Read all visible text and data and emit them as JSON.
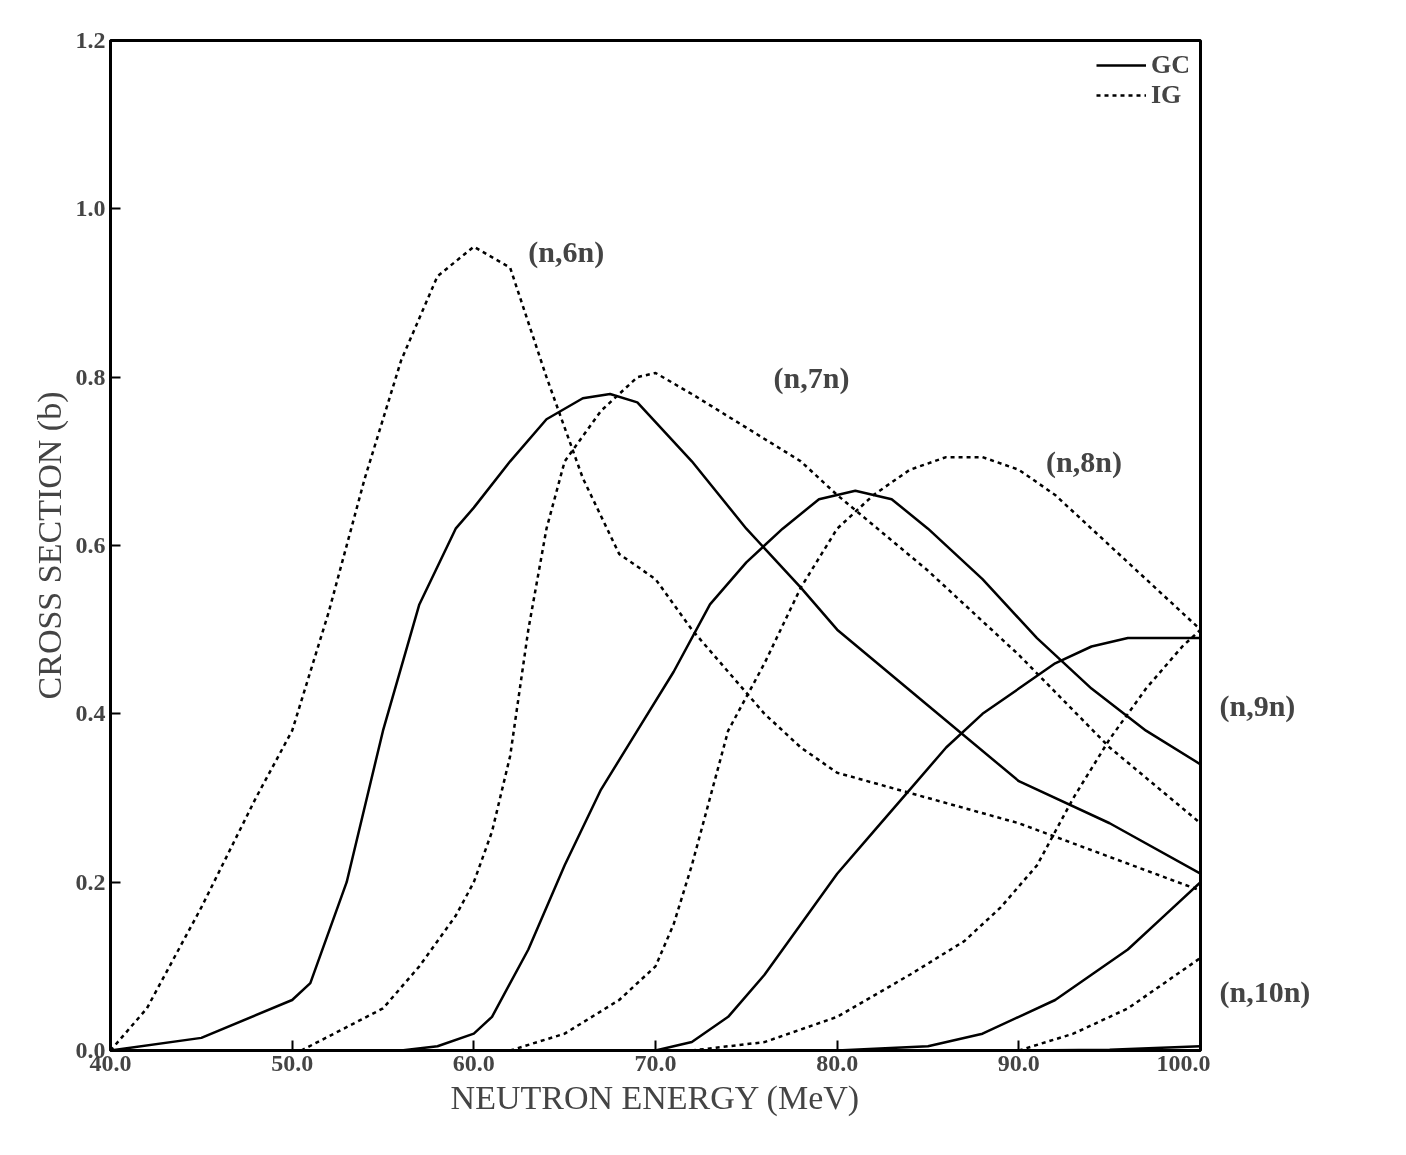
{
  "chart_data": {
    "type": "line",
    "xlabel": "NEUTRON ENERGY (MeV)",
    "ylabel": "CROSS SECTION (b)",
    "xlim": [
      40,
      100
    ],
    "ylim": [
      0,
      1.2
    ],
    "xticks": [
      {
        "value": 40,
        "label": "40.0"
      },
      {
        "value": 50,
        "label": "50.0"
      },
      {
        "value": 60,
        "label": "60.0"
      },
      {
        "value": 70,
        "label": "70.0"
      },
      {
        "value": 80,
        "label": "80.0"
      },
      {
        "value": 90,
        "label": "90.0"
      },
      {
        "value": 100,
        "label": "100.0"
      }
    ],
    "yticks": [
      {
        "value": 0,
        "label": "0.0"
      },
      {
        "value": 0.2,
        "label": "0.2"
      },
      {
        "value": 0.4,
        "label": "0.4"
      },
      {
        "value": 0.6,
        "label": "0.6"
      },
      {
        "value": 0.8,
        "label": "0.8"
      },
      {
        "value": 1.0,
        "label": "1.0"
      },
      {
        "value": 1.2,
        "label": "1.2"
      }
    ],
    "grid": false,
    "legend": "top right",
    "marker": "none",
    "annotations": [
      "(n,6n)",
      "(n,7n)",
      "(n,8n)",
      "(n,9n)",
      "(n,10n)"
    ],
    "series": [
      {
        "name": "GC",
        "color": "#000000",
        "line_style": "solid",
        "x": [
          40,
          45,
          50,
          51,
          53,
          55,
          57,
          59,
          60,
          62,
          64,
          66,
          67.5,
          69,
          72,
          75,
          78,
          80,
          85,
          90,
          95,
          100
        ],
        "values": [
          0,
          0.015,
          0.06,
          0.08,
          0.2,
          0.38,
          0.53,
          0.62,
          0.645,
          0.7,
          0.75,
          0.775,
          0.78,
          0.77,
          0.7,
          0.62,
          0.55,
          0.5,
          0.41,
          0.32,
          0.27,
          0.21
        ]
      },
      {
        "name": "IG",
        "color": "#000000",
        "line_style": "dashed",
        "x": [
          40,
          42,
          45,
          48,
          50,
          52,
          54,
          56,
          58,
          60,
          62,
          64,
          66,
          68,
          70,
          72,
          74,
          76,
          78,
          80,
          85,
          90,
          95,
          100
        ],
        "values": [
          0,
          0.05,
          0.17,
          0.3,
          0.38,
          0.52,
          0.68,
          0.82,
          0.92,
          0.955,
          0.93,
          0.8,
          0.68,
          0.59,
          0.56,
          0.5,
          0.45,
          0.4,
          0.36,
          0.33,
          0.3,
          0.27,
          0.23,
          0.19
        ]
      },
      {
        "color": "#000000",
        "line_style": "dashed",
        "x": [
          50.5,
          55,
          57,
          59,
          60,
          61,
          62,
          63,
          64,
          65,
          67,
          69,
          70,
          72,
          75,
          78,
          80,
          85,
          90,
          95,
          100
        ],
        "values": [
          0,
          0.05,
          0.1,
          0.16,
          0.2,
          0.26,
          0.35,
          0.5,
          0.62,
          0.7,
          0.76,
          0.8,
          0.805,
          0.78,
          0.74,
          0.7,
          0.66,
          0.57,
          0.47,
          0.36,
          0.27
        ]
      },
      {
        "color": "#000000",
        "line_style": "solid",
        "x": [
          40,
          56,
          58,
          60,
          61,
          63,
          65,
          67,
          69,
          71,
          73,
          75,
          77,
          79,
          81,
          83,
          85,
          88,
          91,
          94,
          97,
          100
        ],
        "values": [
          0,
          0,
          0.005,
          0.02,
          0.04,
          0.12,
          0.22,
          0.31,
          0.38,
          0.45,
          0.53,
          0.58,
          0.62,
          0.655,
          0.665,
          0.655,
          0.62,
          0.56,
          0.49,
          0.43,
          0.38,
          0.34
        ]
      },
      {
        "color": "#000000",
        "line_style": "dashed",
        "x": [
          62,
          65,
          68,
          70,
          71,
          72,
          73,
          74,
          75,
          76,
          78,
          80,
          82,
          84,
          86,
          88,
          90,
          92,
          95,
          98,
          100
        ],
        "values": [
          0,
          0.02,
          0.06,
          0.1,
          0.15,
          0.22,
          0.3,
          0.38,
          0.42,
          0.46,
          0.55,
          0.62,
          0.66,
          0.69,
          0.705,
          0.705,
          0.69,
          0.66,
          0.6,
          0.54,
          0.5
        ]
      },
      {
        "color": "#000000",
        "line_style": "solid",
        "x": [
          70,
          72,
          74,
          76,
          78,
          80,
          82,
          84,
          86,
          88,
          90,
          92,
          94,
          96,
          98,
          100
        ],
        "values": [
          0,
          0.01,
          0.04,
          0.09,
          0.15,
          0.21,
          0.26,
          0.31,
          0.36,
          0.4,
          0.43,
          0.46,
          0.48,
          0.49,
          0.49,
          0.49
        ]
      },
      {
        "color": "#000000",
        "line_style": "dashed",
        "x": [
          72,
          76,
          80,
          84,
          87,
          89,
          91,
          93,
          95,
          97,
          99,
          100
        ],
        "values": [
          0,
          0.01,
          0.04,
          0.09,
          0.13,
          0.17,
          0.22,
          0.3,
          0.37,
          0.43,
          0.48,
          0.5
        ]
      },
      {
        "color": "#000000",
        "line_style": "solid",
        "x": [
          80,
          85,
          88,
          90,
          92,
          94,
          96,
          98,
          100
        ],
        "values": [
          0,
          0.005,
          0.02,
          0.04,
          0.06,
          0.09,
          0.12,
          0.16,
          0.2
        ]
      },
      {
        "color": "#000000",
        "line_style": "dashed",
        "x": [
          90,
          93,
          96,
          98,
          100
        ],
        "values": [
          0,
          0.02,
          0.05,
          0.08,
          0.11
        ]
      },
      {
        "color": "#000000",
        "line_style": "solid",
        "x": [
          90,
          95,
          100
        ],
        "values": [
          0,
          0.001,
          0.005
        ]
      }
    ]
  }
}
